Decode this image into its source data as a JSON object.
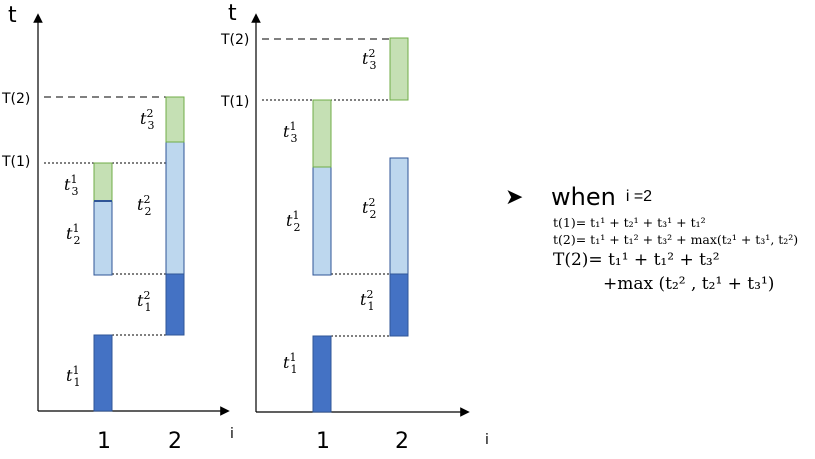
{
  "left_diagram": {
    "y_axis_label": "t",
    "x_axis_label": "i",
    "x_ticks": [
      "1",
      "2"
    ],
    "level_labels": [
      "T(2)",
      "T(1)"
    ]
  },
  "right_diagram": {
    "y_axis_label": "t",
    "x_axis_label": "i",
    "x_ticks": [
      "1",
      "2"
    ],
    "level_labels": [
      "T(2)",
      "T(1)"
    ]
  },
  "colors": {
    "dark_blue": "#4472c4",
    "light_blue": "#bdd7ee",
    "green": "#c5e0b4",
    "outline": "#2f5597",
    "green_outline": "#70ad47"
  },
  "formula": {
    "arrow_icon": "arrow-bullet-icon",
    "heading_when": "when",
    "heading_cond": "i =2",
    "line1": "t(1)= t₁¹ + t₂¹ + t₃¹ + t₁²",
    "line2": "t(2)= t₁¹ + t₁² + t₃² + max(t₂¹ + t₃¹, t₂²)",
    "line3": "T(2)= t₁¹ + t₁² + t₃²",
    "line4": "+max (t₂² , t₂¹ + t₃¹)"
  }
}
